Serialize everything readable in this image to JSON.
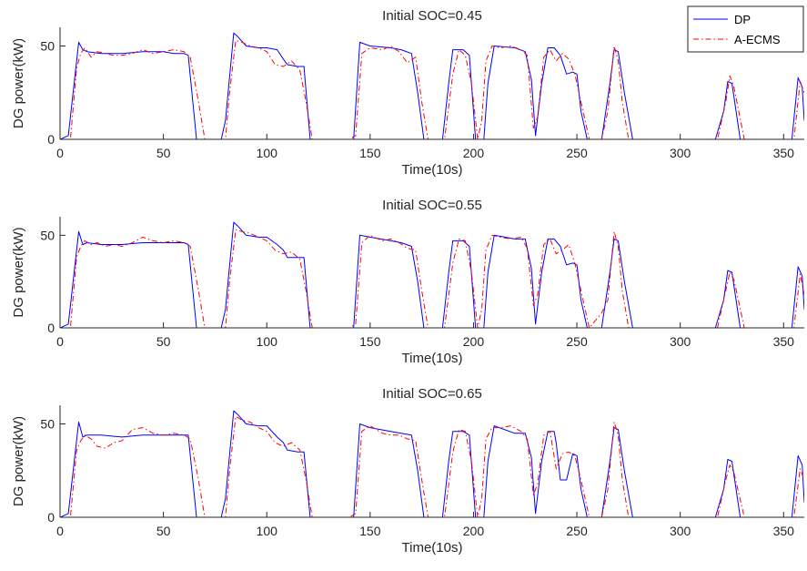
{
  "colors": {
    "dp": "#0000ff",
    "aecms": "#ff0000",
    "axis": "#262626",
    "background": "#ffffff"
  },
  "legend": {
    "placement": "top-right",
    "entries": [
      "DP",
      "A-ECMS"
    ]
  },
  "chart_data": [
    {
      "type": "line",
      "title": "Initial SOC=0.45",
      "xlabel": "Time(10s)",
      "ylabel": "DG power(kW)",
      "xlim": [
        0,
        360
      ],
      "ylim": [
        0,
        60
      ],
      "xticks": [
        0,
        50,
        100,
        150,
        200,
        250,
        300,
        350
      ],
      "yticks": [
        0,
        50
      ],
      "grid": false,
      "series": [
        {
          "name": "DP",
          "style": "solid",
          "x": [
            0,
            4,
            9,
            11,
            13,
            20,
            30,
            40,
            50,
            55,
            60,
            62,
            66,
            68,
            72,
            78,
            80,
            84,
            86,
            90,
            96,
            100,
            105,
            108,
            110,
            115,
            118,
            121,
            130,
            138,
            142,
            145,
            150,
            160,
            165,
            170,
            173,
            176,
            185,
            188,
            190,
            195,
            198,
            201,
            205,
            207,
            210,
            220,
            225,
            228,
            230,
            233,
            236,
            239,
            242,
            245,
            248,
            250,
            252,
            255,
            262,
            266,
            268,
            270,
            273,
            277,
            300,
            317,
            321,
            323,
            325,
            329,
            345,
            354,
            357,
            359,
            360
          ],
          "y": [
            0,
            2,
            52,
            48,
            47,
            46,
            46,
            47,
            47,
            46,
            46,
            45,
            0,
            0,
            0,
            0,
            10,
            57,
            55,
            50,
            49,
            49,
            48,
            43,
            40,
            39,
            39,
            0,
            0,
            0,
            0,
            52,
            50,
            49,
            48,
            46,
            25,
            0,
            0,
            30,
            48,
            48,
            45,
            0,
            0,
            30,
            50,
            49,
            47,
            32,
            2,
            30,
            49,
            49,
            45,
            35,
            36,
            35,
            15,
            0,
            0,
            30,
            48,
            47,
            25,
            0,
            0,
            0,
            15,
            31,
            30,
            0,
            0,
            0,
            33,
            28,
            10
          ]
        },
        {
          "name": "A-ECMS",
          "style": "dashdot",
          "x": [
            0,
            5,
            8,
            10,
            12,
            15,
            18,
            22,
            26,
            30,
            35,
            40,
            45,
            50,
            55,
            60,
            63,
            67,
            70,
            75,
            80,
            82,
            85,
            88,
            92,
            96,
            100,
            104,
            108,
            112,
            116,
            119,
            122,
            132,
            140,
            143,
            146,
            150,
            156,
            160,
            164,
            168,
            172,
            175,
            178,
            186,
            190,
            193,
            196,
            199,
            202,
            204,
            206,
            209,
            213,
            218,
            223,
            226,
            229,
            231,
            234,
            237,
            240,
            243,
            246,
            249,
            252,
            256,
            262,
            265,
            268,
            270,
            272,
            275,
            278,
            300,
            318,
            322,
            324,
            326,
            331,
            345,
            355,
            358,
            360
          ],
          "y": [
            0,
            0,
            38,
            46,
            49,
            44,
            47,
            46,
            45,
            45,
            46,
            48,
            46,
            47,
            48,
            47,
            44,
            20,
            0,
            0,
            0,
            25,
            53,
            52,
            50,
            49,
            47,
            40,
            39,
            42,
            37,
            20,
            0,
            0,
            0,
            2,
            46,
            49,
            48,
            50,
            47,
            41,
            44,
            20,
            0,
            0,
            35,
            48,
            45,
            30,
            0,
            10,
            42,
            50,
            49,
            50,
            48,
            45,
            6,
            12,
            44,
            48,
            42,
            46,
            43,
            35,
            20,
            0,
            0,
            15,
            50,
            42,
            20,
            0,
            0,
            0,
            0,
            20,
            34,
            28,
            0,
            0,
            0,
            31,
            25
          ]
        }
      ]
    },
    {
      "type": "line",
      "title": "Initial SOC=0.55",
      "xlabel": "Time(10s)",
      "ylabel": "DG power(kW)",
      "xlim": [
        0,
        360
      ],
      "ylim": [
        0,
        60
      ],
      "xticks": [
        0,
        50,
        100,
        150,
        200,
        250,
        300,
        350
      ],
      "yticks": [
        0,
        50
      ],
      "grid": false,
      "series": [
        {
          "name": "DP",
          "style": "solid",
          "x": [
            0,
            4,
            9,
            11,
            13,
            20,
            30,
            40,
            50,
            55,
            60,
            62,
            66,
            68,
            72,
            78,
            80,
            84,
            86,
            90,
            96,
            100,
            105,
            108,
            110,
            115,
            118,
            121,
            130,
            138,
            142,
            145,
            150,
            160,
            165,
            170,
            173,
            176,
            185,
            188,
            190,
            195,
            198,
            201,
            205,
            207,
            210,
            220,
            225,
            228,
            230,
            233,
            236,
            239,
            242,
            245,
            248,
            250,
            252,
            255,
            262,
            266,
            268,
            270,
            273,
            277,
            300,
            317,
            321,
            323,
            325,
            329,
            345,
            354,
            357,
            359,
            360
          ],
          "y": [
            0,
            2,
            52,
            45,
            46,
            45,
            45,
            46,
            46,
            46,
            46,
            45,
            0,
            0,
            0,
            0,
            10,
            57,
            55,
            50,
            49,
            49,
            45,
            42,
            38,
            38,
            38,
            0,
            0,
            0,
            0,
            50,
            49,
            47,
            46,
            44,
            25,
            0,
            0,
            30,
            47,
            47,
            44,
            0,
            0,
            30,
            50,
            48,
            48,
            32,
            2,
            30,
            48,
            48,
            44,
            34,
            35,
            34,
            15,
            0,
            0,
            30,
            48,
            47,
            25,
            0,
            0,
            0,
            15,
            31,
            30,
            0,
            0,
            0,
            33,
            28,
            10
          ]
        },
        {
          "name": "A-ECMS",
          "style": "dashdot",
          "x": [
            0,
            5,
            8,
            10,
            12,
            15,
            18,
            22,
            26,
            30,
            35,
            40,
            45,
            50,
            55,
            60,
            63,
            67,
            70,
            75,
            80,
            82,
            85,
            88,
            92,
            96,
            100,
            104,
            108,
            112,
            116,
            119,
            122,
            132,
            140,
            143,
            146,
            150,
            156,
            160,
            164,
            168,
            172,
            175,
            178,
            186,
            190,
            193,
            196,
            199,
            202,
            204,
            206,
            209,
            213,
            218,
            223,
            226,
            229,
            231,
            234,
            237,
            240,
            243,
            246,
            249,
            252,
            256,
            262,
            265,
            268,
            270,
            272,
            275,
            278,
            300,
            318,
            322,
            324,
            326,
            331,
            345,
            355,
            358,
            360
          ],
          "y": [
            0,
            0,
            38,
            44,
            47,
            45,
            46,
            44,
            45,
            44,
            46,
            49,
            47,
            46,
            47,
            46,
            44,
            20,
            0,
            0,
            0,
            25,
            53,
            52,
            51,
            49,
            47,
            42,
            40,
            41,
            37,
            20,
            0,
            0,
            0,
            2,
            46,
            50,
            47,
            48,
            46,
            43,
            42,
            20,
            0,
            0,
            35,
            48,
            47,
            30,
            0,
            10,
            42,
            50,
            49,
            48,
            49,
            43,
            12,
            18,
            45,
            48,
            40,
            42,
            45,
            35,
            20,
            0,
            8,
            15,
            52,
            44,
            20,
            0,
            0,
            0,
            0,
            20,
            30,
            26,
            0,
            0,
            0,
            29,
            18
          ]
        }
      ]
    },
    {
      "type": "line",
      "title": "Initial SOC=0.65",
      "xlabel": "Time(10s)",
      "ylabel": "DG power(kW)",
      "xlim": [
        0,
        360
      ],
      "ylim": [
        0,
        60
      ],
      "xticks": [
        0,
        50,
        100,
        150,
        200,
        250,
        300,
        350
      ],
      "yticks": [
        0,
        50
      ],
      "grid": false,
      "series": [
        {
          "name": "DP",
          "style": "solid",
          "x": [
            0,
            4,
            9,
            11,
            13,
            20,
            30,
            40,
            50,
            55,
            60,
            62,
            66,
            68,
            72,
            78,
            80,
            84,
            86,
            90,
            96,
            100,
            105,
            108,
            110,
            115,
            118,
            121,
            130,
            138,
            142,
            145,
            150,
            160,
            165,
            170,
            173,
            176,
            185,
            188,
            190,
            195,
            198,
            201,
            205,
            207,
            210,
            220,
            225,
            228,
            230,
            233,
            236,
            239,
            240,
            242,
            245,
            248,
            250,
            252,
            255,
            262,
            266,
            268,
            270,
            273,
            277,
            300,
            317,
            321,
            323,
            325,
            329,
            345,
            354,
            357,
            359,
            360
          ],
          "y": [
            0,
            2,
            51,
            43,
            44,
            44,
            43,
            44,
            44,
            44,
            44,
            44,
            0,
            0,
            0,
            0,
            10,
            57,
            55,
            50,
            49,
            49,
            43,
            40,
            36,
            35,
            35,
            0,
            0,
            0,
            0,
            50,
            48,
            46,
            45,
            44,
            25,
            0,
            0,
            30,
            46,
            46,
            44,
            0,
            0,
            30,
            49,
            45,
            45,
            32,
            2,
            30,
            46,
            46,
            40,
            20,
            20,
            34,
            33,
            15,
            0,
            0,
            30,
            48,
            47,
            25,
            0,
            0,
            0,
            15,
            31,
            30,
            0,
            0,
            0,
            33,
            28,
            8
          ]
        },
        {
          "name": "A-ECMS",
          "style": "dashdot",
          "x": [
            0,
            5,
            8,
            10,
            12,
            15,
            18,
            22,
            26,
            30,
            35,
            40,
            45,
            50,
            55,
            60,
            63,
            67,
            70,
            75,
            80,
            82,
            85,
            88,
            92,
            96,
            100,
            104,
            108,
            112,
            116,
            119,
            122,
            132,
            140,
            143,
            146,
            150,
            156,
            160,
            164,
            168,
            172,
            175,
            178,
            186,
            190,
            193,
            196,
            199,
            202,
            204,
            206,
            209,
            213,
            218,
            223,
            226,
            229,
            231,
            234,
            237,
            240,
            243,
            246,
            249,
            252,
            256,
            262,
            265,
            268,
            270,
            272,
            275,
            278,
            300,
            318,
            322,
            324,
            326,
            331,
            345,
            355,
            358,
            360
          ],
          "y": [
            0,
            0,
            36,
            41,
            44,
            42,
            38,
            37,
            40,
            41,
            47,
            48,
            45,
            44,
            45,
            44,
            42,
            20,
            0,
            0,
            0,
            25,
            54,
            52,
            51,
            48,
            46,
            40,
            38,
            40,
            36,
            20,
            0,
            0,
            0,
            2,
            46,
            49,
            45,
            44,
            44,
            42,
            41,
            20,
            0,
            0,
            35,
            47,
            46,
            30,
            0,
            10,
            42,
            48,
            48,
            49,
            46,
            42,
            12,
            18,
            44,
            46,
            26,
            34,
            35,
            33,
            20,
            0,
            0,
            15,
            51,
            44,
            20,
            0,
            0,
            0,
            0,
            20,
            28,
            24,
            0,
            0,
            0,
            26,
            20
          ]
        }
      ]
    }
  ]
}
